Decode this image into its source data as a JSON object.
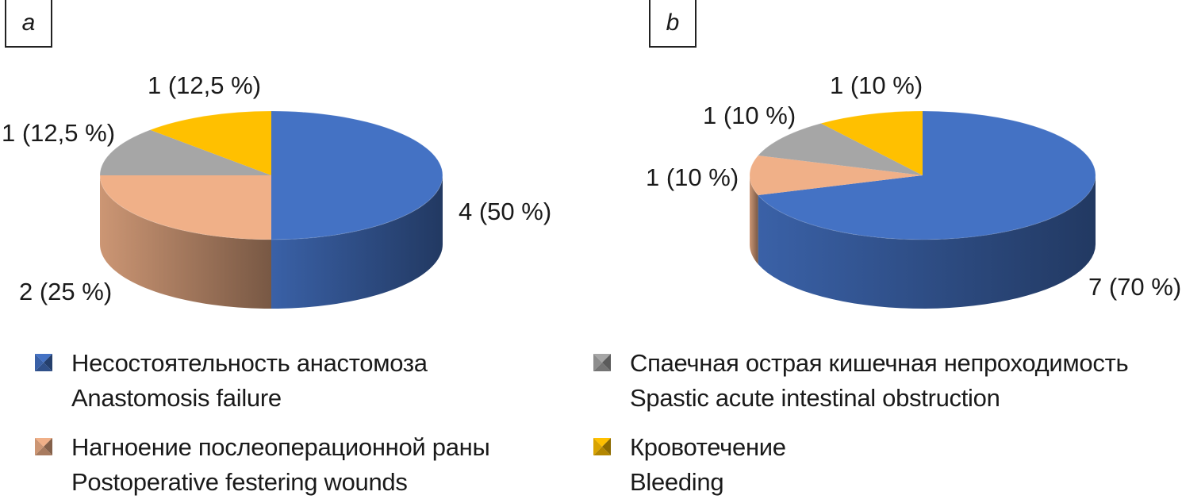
{
  "panels": {
    "a": "a",
    "b": "b"
  },
  "colors": {
    "anastomosis": "#4472c4",
    "wound": "#f0b088",
    "obstruction": "#a6a6a6",
    "bleeding": "#ffc000"
  },
  "legend": [
    {
      "key": "anastomosis",
      "ru": "Несостоятельность анастомоза",
      "en": "Anastomosis failure"
    },
    {
      "key": "obstruction",
      "ru": "Спаечная острая кишечная непроходимость",
      "en": "Spastic acute intestinal obstruction"
    },
    {
      "key": "wound",
      "ru": "Нагноение послеоперационной раны",
      "en": "Postoperative festering wounds"
    },
    {
      "key": "bleeding",
      "ru": "Кровотечение",
      "en": "Bleeding"
    }
  ],
  "chart_data": [
    {
      "type": "pie",
      "panel": "a",
      "categories": [
        "Anastomosis failure",
        "Postoperative festering wounds",
        "Spastic acute intestinal obstruction",
        "Bleeding"
      ],
      "values": [
        4,
        2,
        1,
        1
      ],
      "labels": [
        "4 (50 %)",
        "2 (25 %)",
        "1 (12,5 %)",
        "1 (12,5 %)"
      ]
    },
    {
      "type": "pie",
      "panel": "b",
      "categories": [
        "Anastomosis failure",
        "Postoperative festering wounds",
        "Spastic acute intestinal obstruction",
        "Bleeding"
      ],
      "values": [
        7,
        1,
        1,
        1
      ],
      "labels": [
        "7 (70 %)",
        "1 (10 %)",
        "1 (10 %)",
        "1 (10 %)"
      ]
    }
  ]
}
